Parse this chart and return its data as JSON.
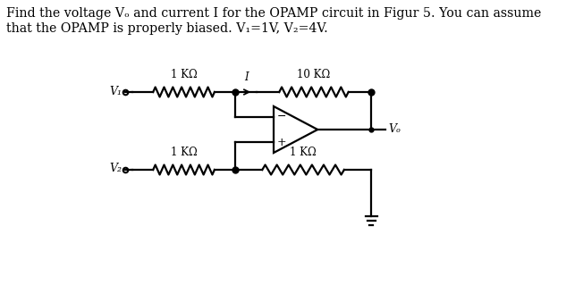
{
  "title_line1": "Find the voltage Vₒ and current I for the OPAMP circuit in Figur 5. You can assume",
  "title_line2": "that the OPAMP is properly biased. V₁=1V, V₂=4V.",
  "bg_color": "#ffffff",
  "circuit": {
    "R_top_label": "1 KΩ",
    "R_top2_label": "10 KΩ",
    "R_bot_label": "1 KΩ",
    "R_bot2_label": "1 KΩ",
    "V1_label": "V₁",
    "V2_label": "V₂",
    "Vo_label": "Vₒ",
    "I_label": "I"
  }
}
